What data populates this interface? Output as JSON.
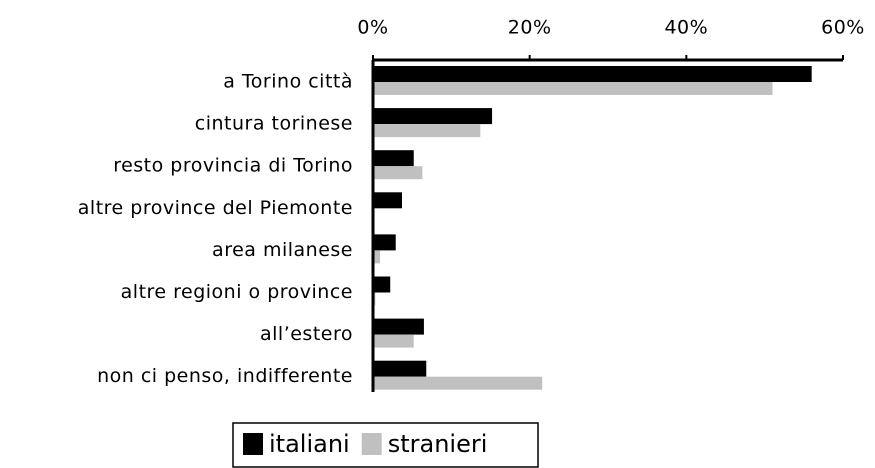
{
  "chart_data": {
    "type": "bar",
    "orientation": "horizontal",
    "categories": [
      "a Torino città",
      "cintura torinese",
      "resto provincia di Torino",
      "altre province del Piemonte",
      "area milanese",
      "altre regioni o province",
      "all’estero",
      "non ci penso, indifferente"
    ],
    "series": [
      {
        "name": "italiani",
        "color": "#000000",
        "values": [
          56,
          15.2,
          5.2,
          3.7,
          2.9,
          2.2,
          6.5,
          6.8
        ]
      },
      {
        "name": "stranieri",
        "color": "#c0c0c0",
        "values": [
          51,
          13.7,
          6.3,
          0,
          0.9,
          0.3,
          5.2,
          21.6
        ]
      }
    ],
    "xlim": [
      0,
      60
    ],
    "xticks": [
      {
        "value": 0,
        "label": "0%"
      },
      {
        "value": 20,
        "label": "20%"
      },
      {
        "value": 40,
        "label": "40%"
      },
      {
        "value": 60,
        "label": "60%"
      }
    ],
    "legend": "bottom"
  }
}
